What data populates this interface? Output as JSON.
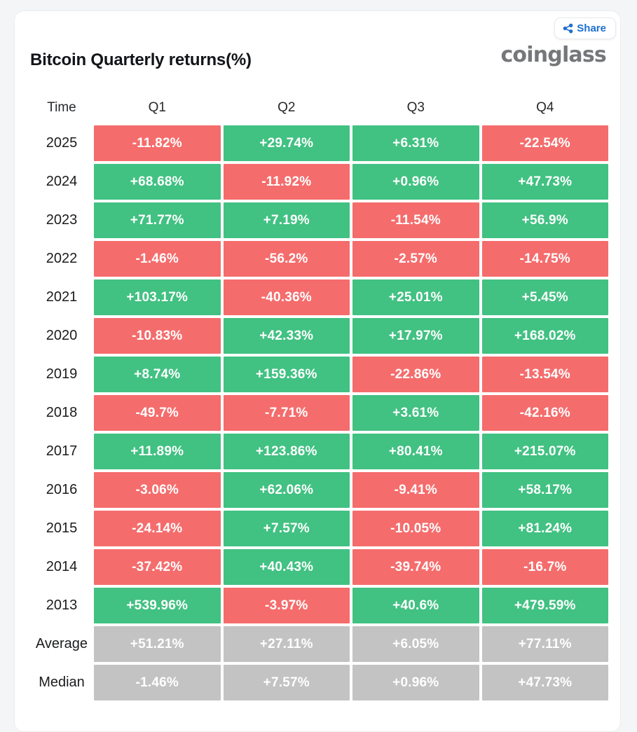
{
  "card": {
    "title": "Bitcoin Quarterly returns(%)",
    "brand": "coinglass",
    "share_label": "Share"
  },
  "colors": {
    "positive": "#41c182",
    "negative": "#f56c6c",
    "summary": "#c3c3c3",
    "accent_blue": "#1e6fd0",
    "value_text": "#ffffff"
  },
  "chart_data": {
    "type": "table",
    "title": "Bitcoin Quarterly returns(%)",
    "row_header_label": "Time",
    "columns": [
      "Q1",
      "Q2",
      "Q3",
      "Q4"
    ],
    "legend": "none",
    "color_rule": "year rows: green if value positive, red if negative; Average/Median rows: gray",
    "rows": [
      {
        "label": "2025",
        "kind": "year",
        "values": [
          -11.82,
          29.74,
          6.31,
          -22.54
        ],
        "display": [
          "-11.82%",
          "+29.74%",
          "+6.31%",
          "-22.54%"
        ]
      },
      {
        "label": "2024",
        "kind": "year",
        "values": [
          68.68,
          -11.92,
          0.96,
          47.73
        ],
        "display": [
          "+68.68%",
          "-11.92%",
          "+0.96%",
          "+47.73%"
        ]
      },
      {
        "label": "2023",
        "kind": "year",
        "values": [
          71.77,
          7.19,
          -11.54,
          56.9
        ],
        "display": [
          "+71.77%",
          "+7.19%",
          "-11.54%",
          "+56.9%"
        ]
      },
      {
        "label": "2022",
        "kind": "year",
        "values": [
          -1.46,
          -56.2,
          -2.57,
          -14.75
        ],
        "display": [
          "-1.46%",
          "-56.2%",
          "-2.57%",
          "-14.75%"
        ]
      },
      {
        "label": "2021",
        "kind": "year",
        "values": [
          103.17,
          -40.36,
          25.01,
          5.45
        ],
        "display": [
          "+103.17%",
          "-40.36%",
          "+25.01%",
          "+5.45%"
        ]
      },
      {
        "label": "2020",
        "kind": "year",
        "values": [
          -10.83,
          42.33,
          17.97,
          168.02
        ],
        "display": [
          "-10.83%",
          "+42.33%",
          "+17.97%",
          "+168.02%"
        ]
      },
      {
        "label": "2019",
        "kind": "year",
        "values": [
          8.74,
          159.36,
          -22.86,
          -13.54
        ],
        "display": [
          "+8.74%",
          "+159.36%",
          "-22.86%",
          "-13.54%"
        ]
      },
      {
        "label": "2018",
        "kind": "year",
        "values": [
          -49.7,
          -7.71,
          3.61,
          -42.16
        ],
        "display": [
          "-49.7%",
          "-7.71%",
          "+3.61%",
          "-42.16%"
        ]
      },
      {
        "label": "2017",
        "kind": "year",
        "values": [
          11.89,
          123.86,
          80.41,
          215.07
        ],
        "display": [
          "+11.89%",
          "+123.86%",
          "+80.41%",
          "+215.07%"
        ]
      },
      {
        "label": "2016",
        "kind": "year",
        "values": [
          -3.06,
          62.06,
          -9.41,
          58.17
        ],
        "display": [
          "-3.06%",
          "+62.06%",
          "-9.41%",
          "+58.17%"
        ]
      },
      {
        "label": "2015",
        "kind": "year",
        "values": [
          -24.14,
          7.57,
          -10.05,
          81.24
        ],
        "display": [
          "-24.14%",
          "+7.57%",
          "-10.05%",
          "+81.24%"
        ]
      },
      {
        "label": "2014",
        "kind": "year",
        "values": [
          -37.42,
          40.43,
          -39.74,
          -16.7
        ],
        "display": [
          "-37.42%",
          "+40.43%",
          "-39.74%",
          "-16.7%"
        ]
      },
      {
        "label": "2013",
        "kind": "year",
        "values": [
          539.96,
          -3.97,
          40.6,
          479.59
        ],
        "display": [
          "+539.96%",
          "-3.97%",
          "+40.6%",
          "+479.59%"
        ]
      },
      {
        "label": "Average",
        "kind": "summary",
        "values": [
          51.21,
          27.11,
          6.05,
          77.11
        ],
        "display": [
          "+51.21%",
          "+27.11%",
          "+6.05%",
          "+77.11%"
        ]
      },
      {
        "label": "Median",
        "kind": "summary",
        "values": [
          -1.46,
          7.57,
          0.96,
          47.73
        ],
        "display": [
          "-1.46%",
          "+7.57%",
          "+0.96%",
          "+47.73%"
        ]
      }
    ]
  }
}
